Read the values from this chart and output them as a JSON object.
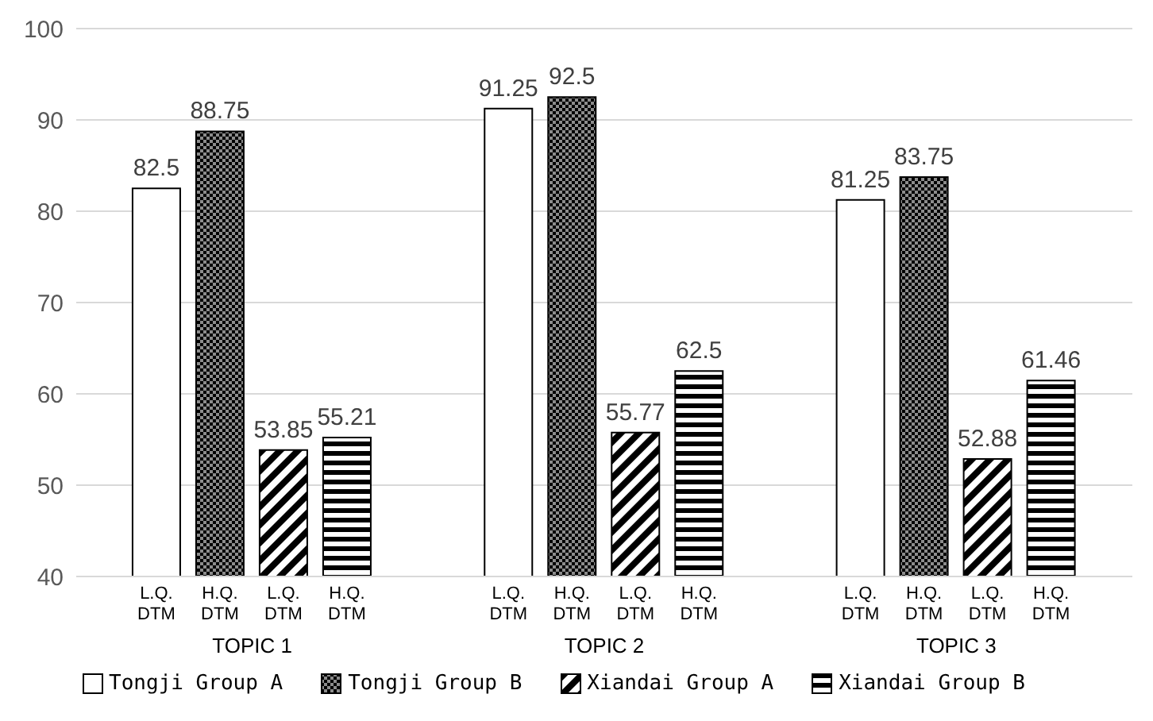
{
  "chart_data": {
    "type": "bar",
    "categories": [
      "TOPIC 1",
      "TOPIC 2",
      "TOPIC 3"
    ],
    "series": [
      {
        "name": "Tongji Group A",
        "color": "#000000",
        "values": [
          82.5,
          91.25,
          81.25
        ]
      },
      {
        "name": "Tongji Group B",
        "color": "#000000",
        "values": [
          88.75,
          92.5,
          83.75
        ]
      },
      {
        "name": "Xiandai Group A",
        "color": "#000000",
        "values": [
          53.85,
          55.77,
          52.88
        ]
      },
      {
        "name": "Xiandai Group B",
        "color": "#000000",
        "values": [
          55.21,
          62.5,
          61.46
        ]
      }
    ],
    "ylim": [
      40,
      100
    ],
    "yticks": [
      40,
      50,
      60,
      70,
      80,
      90,
      100
    ],
    "grid": "y",
    "legend": "bottom",
    "data_labels": true,
    "annotations": [
      "L.Q. DTM",
      "H.Q. DTM",
      "L.Q. DTM",
      "H.Q. DTM",
      "L.Q. DTM",
      "H.Q. DTM",
      "L.Q. DTM",
      "H.Q. DTM",
      "L.Q. DTM",
      "H.Q. DTM",
      "L.Q. DTM",
      "H.Q. DTM"
    ]
  }
}
